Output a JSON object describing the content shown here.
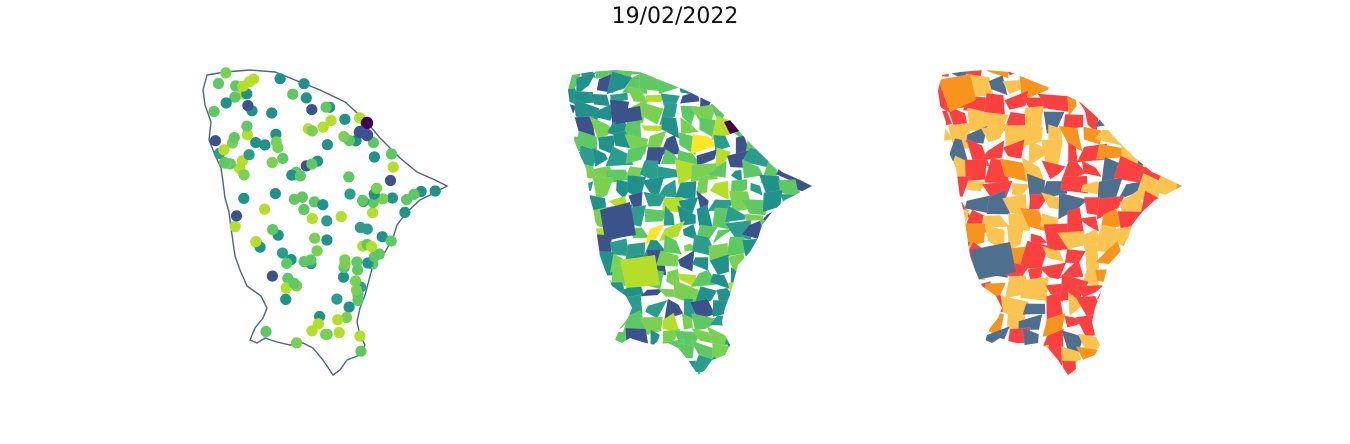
{
  "figure": {
    "title": "19/02/2022"
  },
  "panels": [
    {
      "kind": "station-points",
      "outline_color": "#4a6585"
    },
    {
      "kind": "choropleth-continuous",
      "palette": [
        "#440154",
        "#3b528b",
        "#21918c",
        "#2a9d8f",
        "#5ec962",
        "#7ad151",
        "#b5de2b",
        "#fde725"
      ]
    },
    {
      "kind": "choropleth-categorical",
      "palette": [
        "#fa4040",
        "#fbc350",
        "#f7941d",
        "#4f6f8f"
      ]
    }
  ],
  "colors": {
    "viridis_dark": "#440154",
    "viridis_blue": "#3b528b",
    "viridis_teal": "#21918c",
    "viridis_green": "#5ec962",
    "viridis_yellow": "#fde725",
    "cat_red": "#fa4040",
    "cat_yellow": "#fbc350",
    "cat_orange": "#f7941d",
    "cat_slate": "#4f6f8f"
  }
}
